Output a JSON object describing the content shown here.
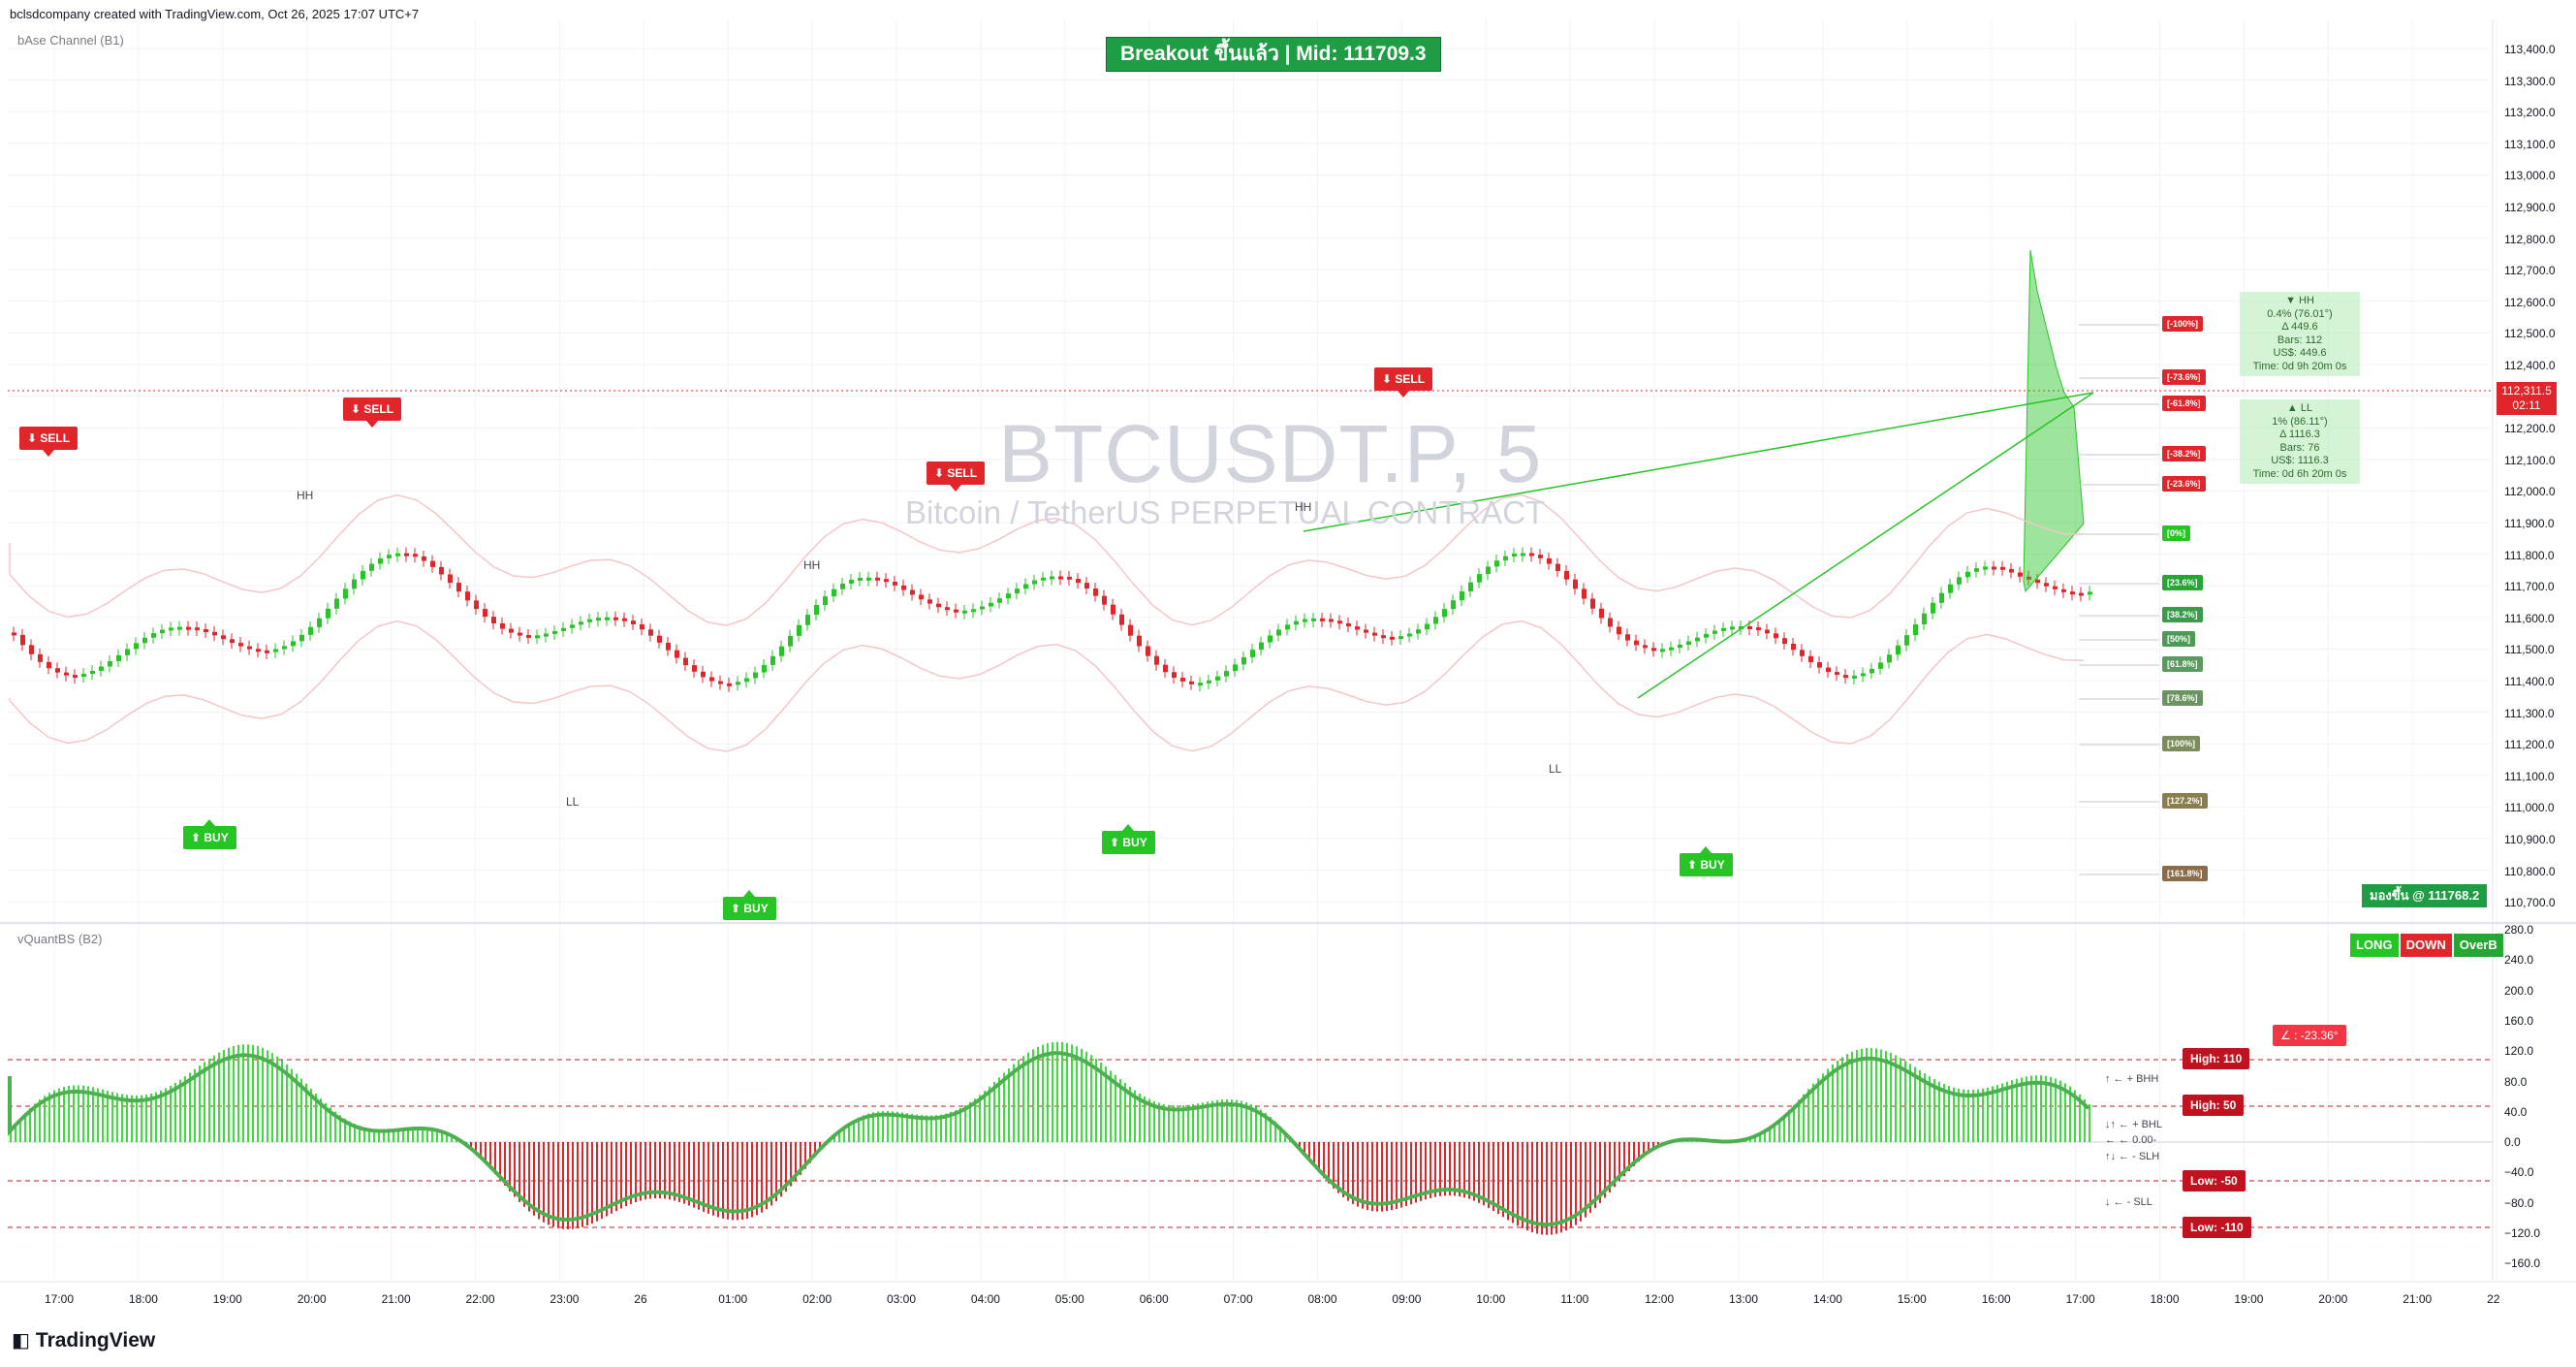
{
  "header": {
    "created_by": "bclsdcompany created with TradingView.com, Oct 26, 2025 17:07 UTC+7",
    "indicator_top": "bAse Channel (B1)",
    "indicator_bottom": "vQuantBS (B2)"
  },
  "banner": "Breakout ขึ้นแล้ว | Mid: 111709.3",
  "watermark": {
    "symbol": "BTCUSDT.P, 5",
    "name": "Bitcoin / TetherUS PERPETUAL CONTRACT"
  },
  "signals": [
    {
      "label": "⬇ SELL",
      "type": "sell"
    },
    {
      "label": "⬇ SELL",
      "type": "sell"
    },
    {
      "label": "⬇ SELL",
      "type": "sell"
    },
    {
      "label": "⬇ SELL",
      "type": "sell"
    },
    {
      "label": "⬆ BUY",
      "type": "buy"
    },
    {
      "label": "⬆ BUY",
      "type": "buy"
    },
    {
      "label": "⬆ BUY",
      "type": "buy"
    },
    {
      "label": "⬆ BUY",
      "type": "buy"
    }
  ],
  "swing_labels": [
    "HH",
    "LL",
    "HH",
    "HH",
    "LL"
  ],
  "fib_levels": [
    "[-100%]",
    "[-73.6%]",
    "[-61.8%]",
    "[-38.2%]",
    "[-23.6%]",
    "[0%]",
    "[23.6%]",
    "[38.2%]",
    "[50%]",
    "[61.8%]",
    "[78.6%]",
    "[100%]",
    "[127.2%]",
    "[161.8%]"
  ],
  "info_hh": [
    "▼ HH",
    "0.4% (76.01°)",
    "Δ 449.6",
    "Bars: 112",
    "US$: 449.6",
    "Time: 0d 9h 20m 0s"
  ],
  "info_ll": [
    "▲ LL",
    "1% (86.11°)",
    "Δ 1116.3",
    "Bars: 76",
    "US$: 1116.3",
    "Time: 0d 6h 20m 0s"
  ],
  "price_axis": [
    "113,400.0",
    "113,300.0",
    "113,200.0",
    "113,100.0",
    "113,000.0",
    "112,900.0",
    "112,800.0",
    "112,700.0",
    "112,600.0",
    "112,500.0",
    "112,400.0",
    "112,300.0",
    "112,200.0",
    "112,100.0",
    "112,000.0",
    "111,900.0",
    "111,800.0",
    "111,700.0",
    "111,600.0",
    "111,500.0",
    "111,400.0",
    "111,300.0",
    "111,200.0",
    "111,100.0",
    "111,000.0",
    "110,900.0",
    "110,800.0",
    "110,700.0"
  ],
  "last_price": {
    "value": "112,311.5",
    "countdown": "02:11"
  },
  "peak_label": "มองขึ้น @ 111768.2",
  "lower_buttons": {
    "long": "LONG",
    "down": "DOWN",
    "overb": "OverB"
  },
  "osc_axis": [
    "280.0",
    "240.0",
    "200.0",
    "160.0",
    "120.0",
    "80.0",
    "40.0",
    "0.0",
    "−40.0",
    "−80.0",
    "−120.0",
    "−160.0"
  ],
  "level_badges": [
    "High: 110",
    "High: 50",
    "Low: -50",
    "Low: -110"
  ],
  "angle_badge": "∠ : -23.36°",
  "legend": [
    "↑ ← + BHH",
    "↓↑ ← + BHL",
    "← ← 0.00-",
    "↑↓ ← - SLH",
    "↓ ← - SLL"
  ],
  "time_axis": [
    "17:00",
    "18:00",
    "19:00",
    "20:00",
    "21:00",
    "22:00",
    "23:00",
    "26",
    "01:00",
    "02:00",
    "03:00",
    "04:00",
    "05:00",
    "06:00",
    "07:00",
    "08:00",
    "09:00",
    "10:00",
    "11:00",
    "12:00",
    "13:00",
    "14:00",
    "15:00",
    "16:00",
    "17:00",
    "18:00",
    "19:00",
    "20:00",
    "21:00",
    "22"
  ],
  "footer": "TradingView",
  "colors": {
    "up": "#26c424",
    "down": "#e0262b",
    "channel": "#f5c6c6",
    "grid": "#f0f3fa"
  }
}
